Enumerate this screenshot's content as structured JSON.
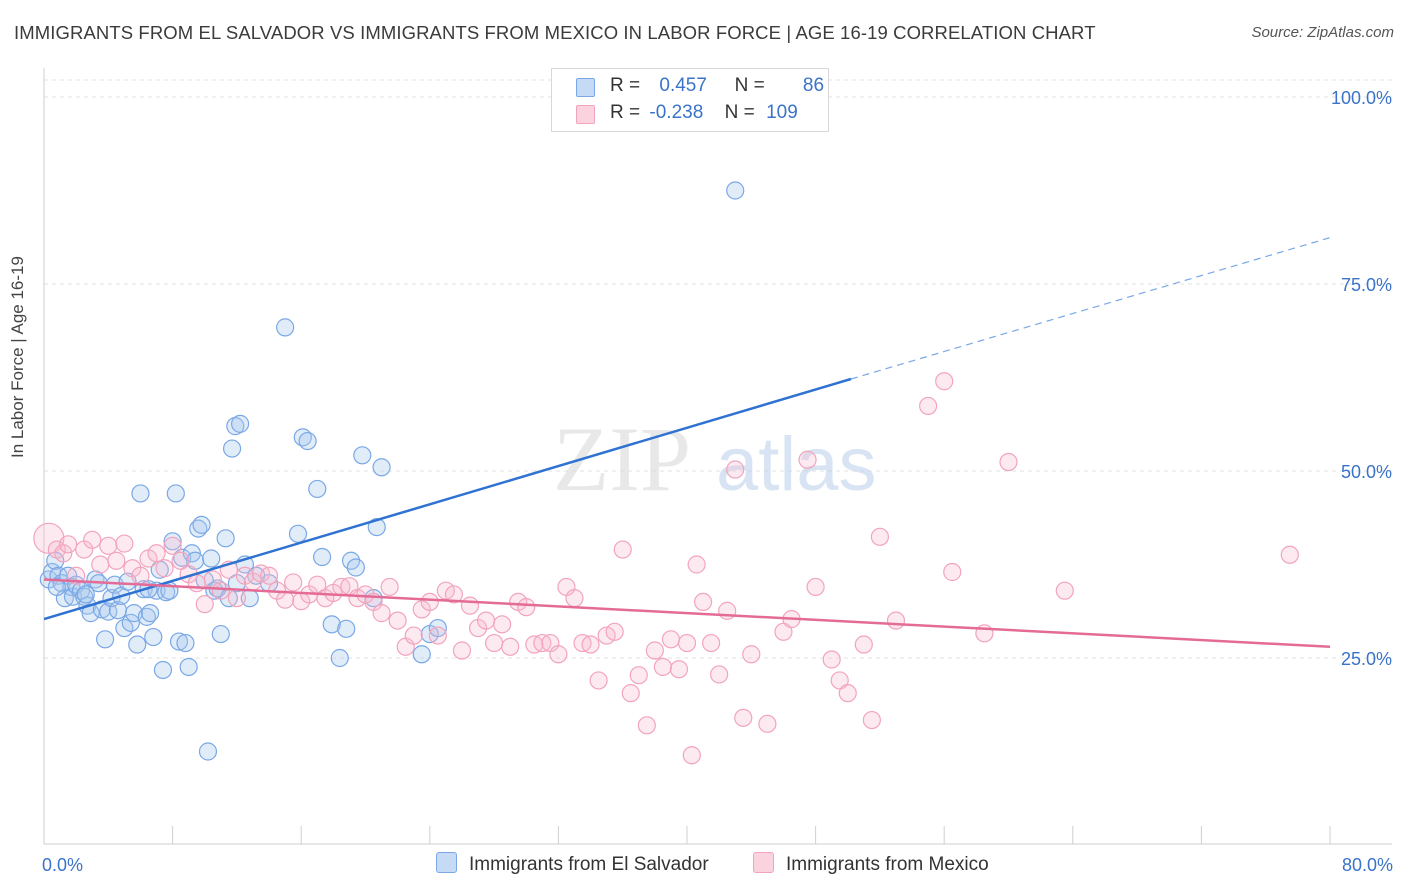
{
  "title": "IMMIGRANTS FROM EL SALVADOR VS IMMIGRANTS FROM MEXICO IN LABOR FORCE | AGE 16-19 CORRELATION CHART",
  "source": "Source: ZipAtlas.com",
  "watermark": {
    "zip": "ZIP",
    "atlas": "atlas"
  },
  "legend": {
    "r_label": "R =",
    "n_label": "N =",
    "rows": [
      {
        "r": "0.457",
        "n": "86",
        "color": "#a8c8ef"
      },
      {
        "r": "-0.238",
        "n": "109",
        "color": "#f6b8cc"
      }
    ]
  },
  "chart_data": {
    "type": "scatter",
    "xlabel": "",
    "ylabel": "In Labor Force | Age 16-19",
    "xlim": [
      0,
      80
    ],
    "ylim": [
      0,
      100
    ],
    "x_tick_labels": [
      "0.0%",
      "80.0%"
    ],
    "y_ticks": [
      25,
      50,
      75,
      100
    ],
    "y_tick_labels": [
      "25.0%",
      "50.0%",
      "75.0%",
      "100.0%"
    ],
    "grid": true,
    "legend_position": "top-center",
    "series": [
      {
        "name": "Immigrants from El Salvador",
        "color": "#7aa8e6",
        "line_color": "#2f72d2",
        "trend": {
          "x": [
            0,
            50.2
          ],
          "y": [
            30.2,
            62.3
          ],
          "extend_to": 80,
          "extend_y": 81.2
        },
        "points": [
          [
            0.3,
            35.5
          ],
          [
            0.5,
            36.5
          ],
          [
            0.7,
            38.0
          ],
          [
            0.9,
            36.0
          ],
          [
            1.1,
            35.0
          ],
          [
            1.3,
            33.0
          ],
          [
            1.5,
            36.0
          ],
          [
            1.7,
            34.5
          ],
          [
            1.8,
            33.2
          ],
          [
            2.0,
            34.8
          ],
          [
            2.3,
            34.0
          ],
          [
            2.5,
            33.2
          ],
          [
            2.7,
            32.0
          ],
          [
            2.9,
            31.0
          ],
          [
            3.2,
            35.5
          ],
          [
            3.4,
            35.0
          ],
          [
            3.6,
            31.5
          ],
          [
            3.8,
            27.5
          ],
          [
            4.0,
            31.2
          ],
          [
            4.2,
            33.0
          ],
          [
            4.4,
            34.8
          ],
          [
            4.6,
            31.4
          ],
          [
            4.8,
            33.3
          ],
          [
            5.0,
            29.0
          ],
          [
            5.2,
            35.2
          ],
          [
            5.4,
            29.7
          ],
          [
            5.6,
            31.0
          ],
          [
            5.8,
            26.8
          ],
          [
            6.0,
            47.0
          ],
          [
            6.2,
            34.2
          ],
          [
            6.4,
            30.5
          ],
          [
            6.6,
            31.0
          ],
          [
            6.8,
            27.8
          ],
          [
            7.0,
            34.0
          ],
          [
            7.2,
            36.8
          ],
          [
            7.4,
            23.4
          ],
          [
            7.6,
            33.8
          ],
          [
            7.8,
            34.0
          ],
          [
            8.0,
            40.6
          ],
          [
            8.2,
            47.0
          ],
          [
            8.4,
            27.2
          ],
          [
            8.6,
            38.4
          ],
          [
            8.8,
            27.0
          ],
          [
            9.0,
            23.8
          ],
          [
            9.2,
            39.0
          ],
          [
            9.4,
            38.0
          ],
          [
            9.6,
            42.3
          ],
          [
            9.8,
            42.8
          ],
          [
            10.0,
            35.4
          ],
          [
            10.2,
            12.5
          ],
          [
            10.4,
            38.3
          ],
          [
            10.6,
            34.0
          ],
          [
            10.8,
            34.3
          ],
          [
            11.0,
            28.2
          ],
          [
            11.3,
            41.0
          ],
          [
            11.5,
            33.0
          ],
          [
            11.7,
            53.0
          ],
          [
            11.9,
            56.0
          ],
          [
            12.2,
            56.3
          ],
          [
            12.5,
            37.5
          ],
          [
            12.8,
            33.0
          ],
          [
            15.0,
            69.2
          ],
          [
            13.2,
            36.0
          ],
          [
            14.0,
            35.0
          ],
          [
            15.8,
            41.6
          ],
          [
            16.1,
            54.5
          ],
          [
            16.4,
            54.0
          ],
          [
            17.0,
            47.6
          ],
          [
            17.3,
            38.5
          ],
          [
            17.9,
            29.5
          ],
          [
            18.4,
            25.0
          ],
          [
            18.8,
            28.9
          ],
          [
            19.1,
            38.0
          ],
          [
            19.4,
            37.1
          ],
          [
            19.8,
            52.1
          ],
          [
            20.5,
            33.0
          ],
          [
            20.7,
            42.5
          ],
          [
            21.0,
            50.5
          ],
          [
            23.5,
            25.5
          ],
          [
            24.0,
            28.2
          ],
          [
            24.5,
            29.0
          ],
          [
            43.0,
            87.5
          ],
          [
            2.6,
            33.5
          ],
          [
            6.5,
            34.2
          ],
          [
            12.0,
            35.0
          ],
          [
            0.8,
            34.5
          ]
        ]
      },
      {
        "name": "Immigrants from Mexico",
        "color": "#f2a4bd",
        "line_color": "#e56b97",
        "trend": {
          "x": [
            0,
            80
          ],
          "y": [
            35.5,
            26.5
          ]
        },
        "points": [
          [
            0.3,
            41.0
          ],
          [
            0.8,
            39.5
          ],
          [
            1.2,
            39.0
          ],
          [
            1.5,
            40.2
          ],
          [
            2.0,
            36.0
          ],
          [
            2.5,
            39.5
          ],
          [
            3.0,
            40.8
          ],
          [
            3.5,
            37.5
          ],
          [
            4.0,
            40.0
          ],
          [
            4.5,
            38.0
          ],
          [
            5.0,
            40.3
          ],
          [
            5.5,
            37.0
          ],
          [
            6.0,
            36.0
          ],
          [
            6.5,
            38.3
          ],
          [
            7.0,
            39.0
          ],
          [
            7.5,
            37.0
          ],
          [
            8.0,
            40.0
          ],
          [
            8.5,
            38.0
          ],
          [
            9.0,
            36.2
          ],
          [
            9.5,
            35.0
          ],
          [
            10.0,
            32.2
          ],
          [
            10.5,
            35.5
          ],
          [
            11.0,
            34.0
          ],
          [
            11.5,
            36.8
          ],
          [
            12.0,
            33.0
          ],
          [
            12.5,
            36.0
          ],
          [
            13.0,
            35.2
          ],
          [
            13.5,
            36.3
          ],
          [
            14.0,
            36.0
          ],
          [
            14.5,
            34.0
          ],
          [
            15.0,
            32.8
          ],
          [
            15.5,
            35.1
          ],
          [
            16.0,
            32.6
          ],
          [
            16.5,
            33.5
          ],
          [
            17.0,
            34.8
          ],
          [
            17.5,
            33.0
          ],
          [
            18.0,
            33.7
          ],
          [
            18.5,
            34.5
          ],
          [
            19.0,
            34.6
          ],
          [
            19.5,
            33.0
          ],
          [
            20.0,
            33.5
          ],
          [
            20.5,
            32.5
          ],
          [
            21.0,
            31.0
          ],
          [
            21.5,
            34.5
          ],
          [
            22.0,
            30.0
          ],
          [
            22.5,
            26.5
          ],
          [
            23.0,
            28.0
          ],
          [
            23.5,
            31.5
          ],
          [
            24.0,
            32.5
          ],
          [
            24.5,
            28.0
          ],
          [
            25.0,
            34.0
          ],
          [
            25.5,
            33.5
          ],
          [
            26.0,
            26.0
          ],
          [
            26.5,
            32.0
          ],
          [
            27.0,
            29.0
          ],
          [
            27.5,
            30.0
          ],
          [
            28.0,
            27.0
          ],
          [
            28.5,
            29.5
          ],
          [
            29.0,
            26.5
          ],
          [
            29.5,
            32.5
          ],
          [
            30.0,
            31.8
          ],
          [
            30.5,
            26.8
          ],
          [
            31.0,
            27.0
          ],
          [
            31.5,
            27.0
          ],
          [
            32.0,
            25.5
          ],
          [
            32.5,
            34.5
          ],
          [
            33.0,
            33.0
          ],
          [
            33.5,
            27.0
          ],
          [
            34.0,
            26.8
          ],
          [
            34.5,
            22.0
          ],
          [
            35.0,
            28.0
          ],
          [
            35.5,
            28.5
          ],
          [
            36.0,
            39.5
          ],
          [
            36.5,
            20.3
          ],
          [
            37.0,
            22.7
          ],
          [
            37.5,
            16.0
          ],
          [
            38.0,
            26.0
          ],
          [
            38.5,
            23.8
          ],
          [
            39.0,
            27.5
          ],
          [
            39.5,
            23.5
          ],
          [
            40.0,
            27.0
          ],
          [
            40.3,
            12.0
          ],
          [
            40.6,
            37.5
          ],
          [
            41.0,
            32.5
          ],
          [
            41.5,
            27.0
          ],
          [
            42.0,
            22.8
          ],
          [
            42.5,
            31.3
          ],
          [
            43.0,
            50.2
          ],
          [
            43.5,
            17.0
          ],
          [
            44.0,
            25.5
          ],
          [
            45.0,
            16.2
          ],
          [
            46.0,
            28.5
          ],
          [
            46.5,
            30.2
          ],
          [
            47.5,
            51.5
          ],
          [
            48.0,
            34.5
          ],
          [
            49.0,
            24.8
          ],
          [
            49.5,
            22.0
          ],
          [
            50.0,
            20.3
          ],
          [
            51.0,
            26.8
          ],
          [
            51.5,
            16.7
          ],
          [
            52.0,
            41.2
          ],
          [
            53.0,
            30.0
          ],
          [
            55.0,
            58.7
          ],
          [
            56.0,
            62.0
          ],
          [
            56.5,
            36.5
          ],
          [
            58.5,
            28.3
          ],
          [
            60.0,
            51.2
          ],
          [
            63.5,
            34.0
          ],
          [
            77.5,
            38.8
          ]
        ]
      }
    ]
  }
}
